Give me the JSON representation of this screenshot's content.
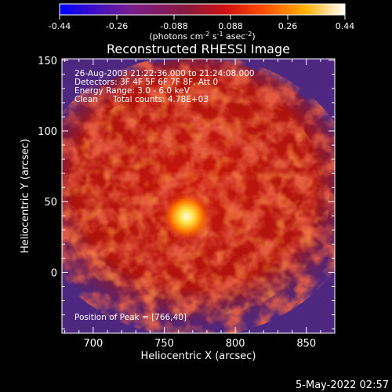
{
  "colorbar": {
    "tick_labels": [
      "-0.44",
      "-0.26",
      "-0.088",
      "0.088",
      "0.26",
      "0.44"
    ],
    "units_prefix": "(photons cm",
    "units_exp1": "-2",
    "units_mid": " s",
    "units_exp2": "-1",
    "units_mid2": " asec",
    "units_exp3": "-2",
    "units_suffix": ")",
    "range": [
      -0.44,
      0.44
    ]
  },
  "chart_data": {
    "type": "heatmap",
    "title": "Reconstructed RHESSI Image",
    "xlabel": "Heliocentric X (arcsec)",
    "ylabel": "Heliocentric Y (arcsec)",
    "xlim": [
      678,
      870
    ],
    "ylim": [
      -43,
      151
    ],
    "x_ticks": [
      700,
      750,
      800,
      850
    ],
    "y_ticks": [
      0,
      50,
      100,
      150
    ],
    "peak": {
      "x": 766,
      "y": 40,
      "value": 0.44
    },
    "annotations": [
      "26-Aug-2003 21:22:36.000 to 21:24:08.000",
      "Detectors: 3F 4F 5F 6F 7F 8F, Att 0",
      "Energy Range: 3.0 - 6.0 keV",
      "Clean",
      "Total counts: 4.78E+03",
      "Position of Peak = [766,40]"
    ],
    "colormap": [
      "#0000ff",
      "#5a1a8c",
      "#7a1e5a",
      "#c01010",
      "#ff4a00",
      "#ff9a00",
      "#ffd040",
      "#ffffff"
    ],
    "background_color": "#552b8a",
    "emission_color": "#d21a0c"
  },
  "timestamp": "5-May-2022 02:57"
}
